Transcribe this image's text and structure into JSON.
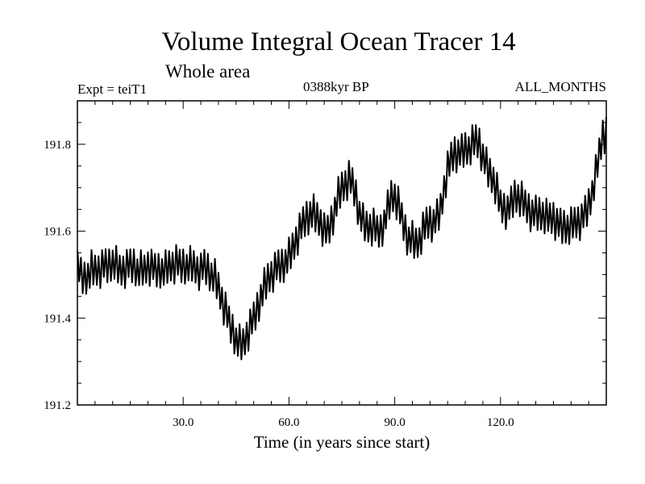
{
  "header": {
    "title": "Volume Integral Ocean Tracer 14",
    "subtitle": "Whole area",
    "expt": "Expt = teiT1",
    "period": "0388kyr BP",
    "months": "ALL_MONTHS"
  },
  "chart_data": {
    "type": "line",
    "xlabel": "Time (in years since start)",
    "ylabel": "",
    "xlim": [
      0,
      150
    ],
    "ylim": [
      191.2,
      191.9
    ],
    "xticks": [
      30,
      60,
      90,
      120
    ],
    "xtick_labels": [
      "30.0",
      "60.0",
      "90.0",
      "120.0"
    ],
    "yticks": [
      191.2,
      191.4,
      191.6,
      191.8
    ],
    "ytick_labels": [
      "191.2",
      "191.4",
      "191.6",
      "191.8"
    ],
    "series": [
      {
        "name": "",
        "x": [
          0,
          1,
          2,
          3,
          4,
          5,
          6,
          7,
          8,
          9,
          10,
          11,
          12,
          13,
          14,
          15,
          16,
          17,
          18,
          19,
          20,
          21,
          22,
          23,
          24,
          25,
          26,
          27,
          28,
          29,
          30,
          31,
          32,
          33,
          34,
          35,
          36,
          37,
          38,
          39,
          40,
          41,
          42,
          43,
          44,
          45,
          46,
          47,
          48,
          49,
          50,
          51,
          52,
          53,
          54,
          55,
          56,
          57,
          58,
          59,
          60,
          61,
          62,
          63,
          64,
          65,
          66,
          67,
          68,
          69,
          70,
          71,
          72,
          73,
          74,
          75,
          76,
          77,
          78,
          79,
          80,
          81,
          82,
          83,
          84,
          85,
          86,
          87,
          88,
          89,
          90,
          91,
          92,
          93,
          94,
          95,
          96,
          97,
          98,
          99,
          100,
          101,
          102,
          103,
          104,
          105,
          106,
          107,
          108,
          109,
          110,
          111,
          112,
          113,
          114,
          115,
          116,
          117,
          118,
          119,
          120,
          121,
          122,
          123,
          124,
          125,
          126,
          127,
          128,
          129,
          130,
          131,
          132,
          133,
          134,
          135,
          136,
          137,
          138,
          139,
          140,
          141,
          142,
          143,
          144,
          145,
          146,
          147,
          148,
          149,
          150
        ],
        "y": [
          191.52,
          191.5,
          191.49,
          191.5,
          191.51,
          191.51,
          191.51,
          191.52,
          191.52,
          191.52,
          191.53,
          191.52,
          191.51,
          191.51,
          191.52,
          191.52,
          191.52,
          191.51,
          191.51,
          191.51,
          191.52,
          191.52,
          191.51,
          191.51,
          191.51,
          191.51,
          191.52,
          191.52,
          191.53,
          191.52,
          191.52,
          191.52,
          191.52,
          191.52,
          191.51,
          191.51,
          191.52,
          191.51,
          191.5,
          191.49,
          191.47,
          191.44,
          191.42,
          191.39,
          191.37,
          191.35,
          191.34,
          191.34,
          191.36,
          191.38,
          191.4,
          191.42,
          191.45,
          191.47,
          191.49,
          191.5,
          191.51,
          191.52,
          191.52,
          191.53,
          191.54,
          191.56,
          191.58,
          191.6,
          191.62,
          191.63,
          191.64,
          191.64,
          191.63,
          191.62,
          191.6,
          191.6,
          191.62,
          191.65,
          191.68,
          191.7,
          191.71,
          191.72,
          191.71,
          191.68,
          191.64,
          191.62,
          191.61,
          191.61,
          191.61,
          191.6,
          191.6,
          191.62,
          191.65,
          191.68,
          191.68,
          191.66,
          191.63,
          191.6,
          191.58,
          191.58,
          191.57,
          191.58,
          191.6,
          191.62,
          191.62,
          191.62,
          191.63,
          191.65,
          191.7,
          191.74,
          191.77,
          191.78,
          191.78,
          191.78,
          191.79,
          191.79,
          191.8,
          191.81,
          191.8,
          191.77,
          191.75,
          191.73,
          191.72,
          191.69,
          191.66,
          191.65,
          191.65,
          191.66,
          191.68,
          191.68,
          191.67,
          191.66,
          191.65,
          191.64,
          191.64,
          191.64,
          191.64,
          191.63,
          191.63,
          191.63,
          191.62,
          191.61,
          191.61,
          191.61,
          191.61,
          191.62,
          191.62,
          191.63,
          191.64,
          191.66,
          191.69,
          191.73,
          191.78,
          191.82,
          191.83
        ],
        "oscillation_amplitude": 0.04
      }
    ]
  }
}
